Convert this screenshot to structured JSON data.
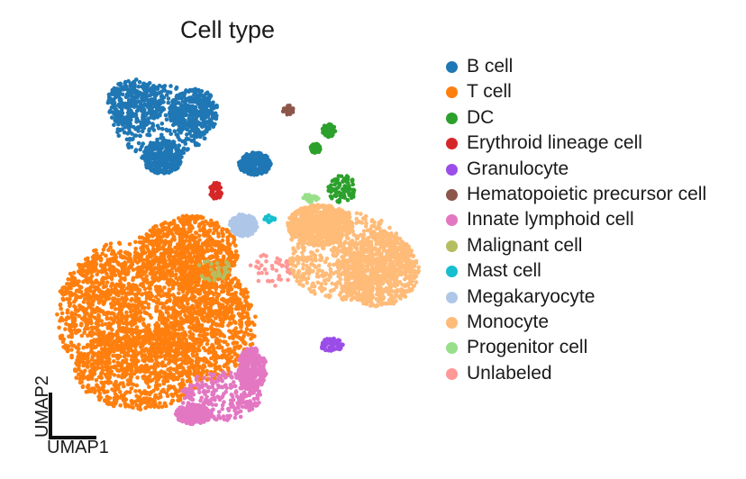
{
  "chart_data": {
    "type": "scatter",
    "title": "Cell type",
    "xlabel": "UMAP1",
    "ylabel": "UMAP2",
    "legend_position": "right",
    "grid": false,
    "series": [
      {
        "name": "B cell",
        "color": "#1f77b4"
      },
      {
        "name": "T cell",
        "color": "#ff7f0e"
      },
      {
        "name": "DC",
        "color": "#2ca02c"
      },
      {
        "name": "Erythroid lineage cell",
        "color": "#d62728"
      },
      {
        "name": "Granulocyte",
        "color": "#9b4de8"
      },
      {
        "name": "Hematopoietic precursor cell",
        "color": "#8c564b"
      },
      {
        "name": "Innate lymphoid cell",
        "color": "#e377c2"
      },
      {
        "name": "Malignant cell",
        "color": "#b5bd61"
      },
      {
        "name": "Mast cell",
        "color": "#17becf"
      },
      {
        "name": "Megakaryocyte",
        "color": "#aec7e8"
      },
      {
        "name": "Monocyte",
        "color": "#ffbb78"
      },
      {
        "name": "Progenitor cell",
        "color": "#98df8a"
      },
      {
        "name": "Unlabeled",
        "color": "#ff9896"
      }
    ]
  }
}
